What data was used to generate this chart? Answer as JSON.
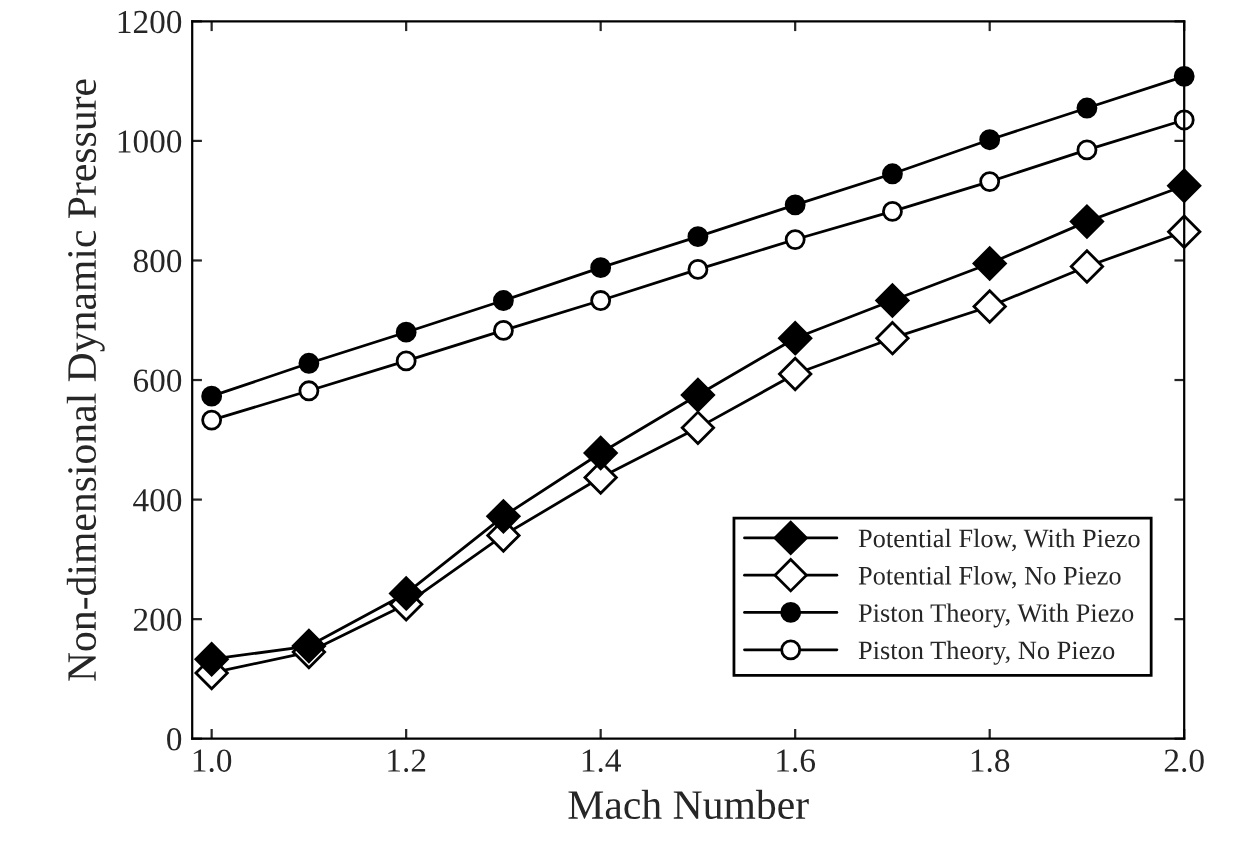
{
  "chart_data": {
    "type": "line",
    "xlabel": "Mach Number",
    "ylabel": "Non-dimensional Dynamic Pressure",
    "x": [
      1.0,
      1.1,
      1.2,
      1.3,
      1.4,
      1.5,
      1.6,
      1.7,
      1.8,
      1.9,
      2.0
    ],
    "series": [
      {
        "name": "Potential Flow, With Piezo",
        "color": "#000000",
        "marker": "diamond",
        "values": [
          133,
          155,
          243,
          372,
          478,
          575,
          670,
          733,
          795,
          865,
          925
        ]
      },
      {
        "name": "Potential Flow, No Piezo",
        "color": "#000000",
        "marker": "diamond",
        "values": [
          110,
          145,
          225,
          340,
          437,
          520,
          610,
          670,
          723,
          790,
          848
        ]
      },
      {
        "name": "Piston Theory, With Piezo",
        "color": "#000000",
        "marker": "circle",
        "values": [
          573,
          628,
          680,
          733,
          788,
          840,
          893,
          945,
          1002,
          1055,
          1108
        ]
      },
      {
        "name": "Piston Theory, No Piezo",
        "color": "#000000",
        "marker": "circle",
        "values": [
          533,
          582,
          632,
          683,
          733,
          785,
          835,
          882,
          932,
          985,
          1035
        ]
      }
    ],
    "xlim": [
      0.98,
      2.0
    ],
    "ylim": [
      0,
      1200
    ],
    "xticks": [
      {
        "value": 1.0,
        "label": "1.0"
      },
      {
        "value": 1.2,
        "label": "1.2"
      },
      {
        "value": 1.4,
        "label": "1.4"
      },
      {
        "value": 1.6,
        "label": "1.6"
      },
      {
        "value": 1.8,
        "label": "1.8"
      },
      {
        "value": 2.0,
        "label": "2.0"
      }
    ],
    "yticks": [
      0,
      200,
      400,
      600,
      800,
      1000,
      1200
    ],
    "legend": "bottom right",
    "line_style": "solid",
    "grid": false
  }
}
